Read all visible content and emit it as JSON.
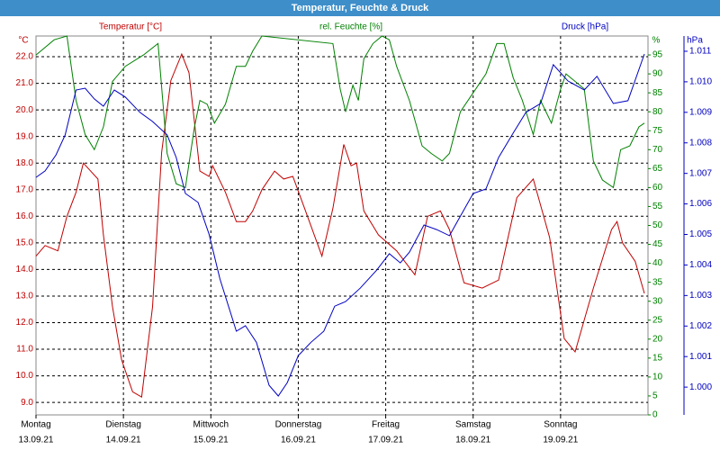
{
  "chart_data": {
    "type": "line",
    "title": "Temperatur, Feuchte & Druck",
    "unit_labels": {
      "y": "°C",
      "y2": "%",
      "y3": "hPa"
    },
    "xlim": [
      0,
      168
    ],
    "xticks": [
      {
        "value": 0,
        "label": "Montag",
        "date": "13.09.21"
      },
      {
        "value": 24,
        "label": "Dienstag",
        "date": "14.09.21"
      },
      {
        "value": 48,
        "label": "Mittwoch",
        "date": "15.09.21"
      },
      {
        "value": 72,
        "label": "Donnerstag",
        "date": "16.09.21"
      },
      {
        "value": 96,
        "label": "Freitag",
        "date": "17.09.21"
      },
      {
        "value": 120,
        "label": "Samstag",
        "date": "18.09.21"
      },
      {
        "value": 144,
        "label": "Sonntag",
        "date": "19.09.21"
      }
    ],
    "ylim": [
      8.53,
      22.78
    ],
    "yticks": [
      {
        "value": 9,
        "label": "9.0"
      },
      {
        "value": 10,
        "label": "10.0"
      },
      {
        "value": 11,
        "label": "11.0"
      },
      {
        "value": 12,
        "label": "12.0"
      },
      {
        "value": 13,
        "label": "13.0"
      },
      {
        "value": 14,
        "label": "14.0"
      },
      {
        "value": 15,
        "label": "15.0"
      },
      {
        "value": 16,
        "label": "16.0"
      },
      {
        "value": 17,
        "label": "17.0"
      },
      {
        "value": 18,
        "label": "18.0"
      },
      {
        "value": 19,
        "label": "19.0"
      },
      {
        "value": 20,
        "label": "20.0"
      },
      {
        "value": 21,
        "label": "21.0"
      },
      {
        "value": 22,
        "label": "22.0"
      }
    ],
    "y2lim": [
      0,
      100
    ],
    "y2ticks": [
      0,
      5,
      10,
      15,
      20,
      25,
      30,
      35,
      40,
      45,
      50,
      55,
      60,
      65,
      70,
      75,
      80,
      85,
      90,
      95
    ],
    "y3lim": [
      0.99909,
      1.0115
    ],
    "y3ticks": [
      {
        "value": 1.0,
        "label": "1.000"
      },
      1.001,
      1.002,
      1.003,
      1.004,
      1.005,
      1.006,
      1.007,
      1.008,
      1.009,
      {
        "value": 1.01,
        "label": "1.010"
      },
      1.011
    ],
    "grid": true,
    "series": [
      {
        "name": "Temperatur [°C]",
        "color": "#c00000",
        "axis": "y",
        "x": [
          0,
          2.5,
          6,
          8.5,
          11,
          13,
          15,
          17,
          18.5,
          21,
          23.5,
          26.5,
          29,
          32,
          34.5,
          37,
          40,
          42,
          45,
          47.5,
          48.5,
          52,
          55,
          57.5,
          59.5,
          62,
          65.5,
          68,
          70.5,
          74,
          78.5,
          81.5,
          84.5,
          86.5,
          88,
          90,
          94,
          99,
          104,
          107.5,
          111,
          113.5,
          117.5,
          122.5,
          127,
          132,
          136.5,
          141,
          145,
          148,
          153,
          158,
          159.5,
          161,
          164.5,
          167
        ],
        "values": [
          14.5,
          14.9,
          14.7,
          16.0,
          16.9,
          18.0,
          17.7,
          17.4,
          15.3,
          12.6,
          10.6,
          9.4,
          9.2,
          12.6,
          18.4,
          21.1,
          22.1,
          21.4,
          17.7,
          17.5,
          17.9,
          16.9,
          15.8,
          15.8,
          16.2,
          17.0,
          17.7,
          17.4,
          17.5,
          16.2,
          14.5,
          16.3,
          18.7,
          17.9,
          18.0,
          16.2,
          15.3,
          14.7,
          13.8,
          16.0,
          16.2,
          15.5,
          13.5,
          13.3,
          13.6,
          16.7,
          17.4,
          15.2,
          11.4,
          10.9,
          13.3,
          15.5,
          15.8,
          15.0,
          14.3,
          13.1
        ]
      },
      {
        "name": "rel. Feuchte [%]",
        "color": "#008000",
        "axis": "y2",
        "x": [
          0,
          5,
          8.5,
          11,
          13.5,
          16,
          18.5,
          21,
          24.5,
          29.5,
          33.5,
          36,
          38.5,
          41,
          43.5,
          45,
          47,
          49,
          52,
          55,
          57.5,
          59.5,
          62,
          81.5,
          83.5,
          85,
          87,
          88.5,
          90,
          92.5,
          95,
          97,
          99,
          102.5,
          106,
          108.5,
          111.5,
          113.5,
          116.5,
          120,
          123.5,
          126.5,
          128.5,
          131,
          133.5,
          136.5,
          138.5,
          141.5,
          144,
          145.5,
          150.5,
          153,
          155.5,
          158.5,
          160.5,
          163,
          165.5,
          167
        ],
        "values": [
          95,
          99,
          100,
          83,
          74,
          70,
          76,
          88,
          92,
          95,
          98,
          69,
          61,
          60,
          76,
          83,
          82,
          77,
          82,
          92,
          92,
          96,
          100,
          98,
          86,
          80,
          87,
          83,
          94,
          98,
          100,
          99,
          92,
          83,
          71,
          69,
          67,
          69,
          80,
          85,
          90,
          98,
          98,
          89,
          83,
          74,
          83,
          77,
          86,
          90,
          86,
          67,
          62,
          60,
          70,
          71,
          76,
          77
        ]
      },
      {
        "name": "Druck [hPa]",
        "color": "#0000c0",
        "axis": "y3",
        "x": [
          0,
          2.5,
          5.5,
          8,
          11,
          13.5,
          16,
          18.5,
          21.5,
          24.5,
          28.5,
          32,
          36,
          38.5,
          41,
          44.5,
          47.5,
          50.5,
          55,
          57.5,
          60.5,
          64,
          66.5,
          69,
          72,
          75.5,
          79,
          82,
          85,
          89,
          93.5,
          97,
          100,
          102.5,
          106.5,
          110,
          113.5,
          116.5,
          120,
          123.5,
          127,
          131,
          134.5,
          138.5,
          142,
          146,
          150.5,
          154,
          158.5,
          162.5,
          167
        ],
        "values": [
          1.00687,
          1.00708,
          1.00761,
          1.00826,
          1.00973,
          1.00979,
          1.00944,
          1.0092,
          1.00973,
          1.0095,
          1.009,
          1.0087,
          1.00826,
          1.00752,
          1.00634,
          1.00605,
          1.00501,
          1.00354,
          1.00183,
          1.00201,
          1.00147,
          1.00006,
          0.99971,
          1.00015,
          1.00103,
          1.00147,
          1.00183,
          1.00265,
          1.0028,
          1.00324,
          1.00383,
          1.00437,
          1.00407,
          1.00442,
          1.00531,
          1.00516,
          1.00496,
          1.0056,
          1.00634,
          1.00649,
          1.00752,
          1.00832,
          1.009,
          1.00929,
          1.01056,
          1.01003,
          1.00973,
          1.01018,
          1.00929,
          1.00938,
          1.01091
        ]
      }
    ]
  }
}
